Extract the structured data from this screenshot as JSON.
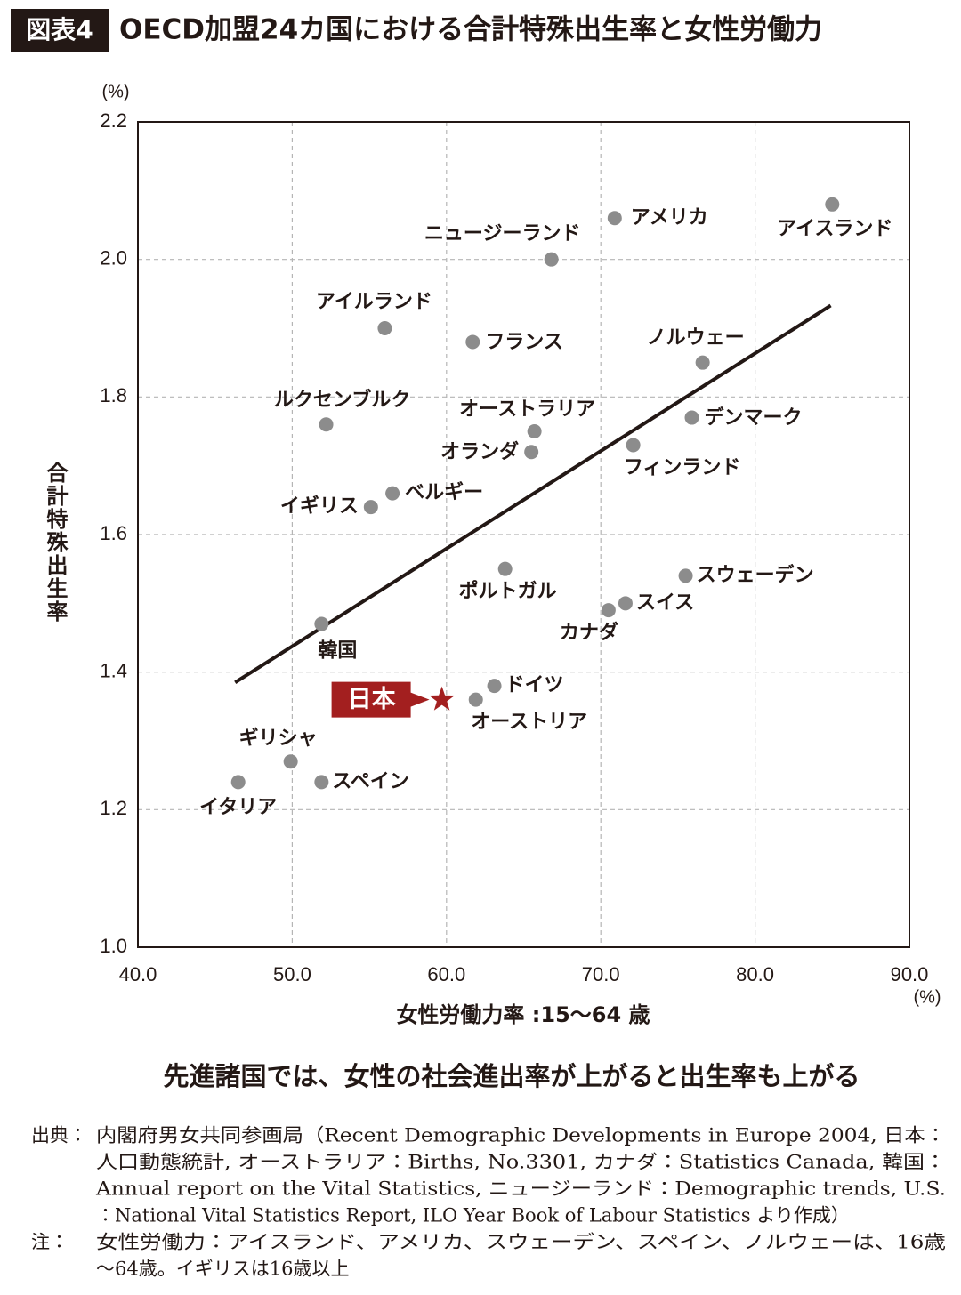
{
  "chart_data": {
    "type": "scatter",
    "badge": "図表4",
    "title": "OECD加盟24カ国における合計特殊出生率と女性労働力",
    "y_unit": "(%)",
    "x_unit": "(%)",
    "ylabel": "合計特殊出生率",
    "xlabel": "女性労働力率 :15〜64 歳",
    "subtitle": "先進諸国では、女性の社会進出率が上がると出生率も上がる",
    "color": "#8c8c8c",
    "highlight_color": "#a31f1f",
    "trend_color": "#231815",
    "xlim": [
      40,
      90
    ],
    "ylim": [
      1.0,
      2.2
    ],
    "xticks": [
      {
        "value": 40,
        "label": "40.0"
      },
      {
        "value": 50,
        "label": "50.0"
      },
      {
        "value": 60,
        "label": "60.0"
      },
      {
        "value": 70,
        "label": "70.0"
      },
      {
        "value": 80,
        "label": "80.0"
      },
      {
        "value": 90,
        "label": "90.0"
      }
    ],
    "yticks": [
      {
        "value": 1,
        "label": "1.0"
      },
      1.2,
      1.4,
      1.6,
      1.8,
      {
        "value": 2,
        "label": "2.0"
      },
      2.2
    ],
    "grid": true,
    "points": [
      {
        "label": "アイスランド",
        "x": 85.0,
        "y": 2.08
      },
      {
        "label": "アメリカ",
        "x": 70.9,
        "y": 2.06
      },
      {
        "label": "ニュージーランド",
        "x": 66.8,
        "y": 2.0
      },
      {
        "label": "アイルランド",
        "x": 56.0,
        "y": 1.9
      },
      {
        "label": "フランス",
        "x": 61.7,
        "y": 1.88
      },
      {
        "label": "ノルウェー",
        "x": 76.6,
        "y": 1.85
      },
      {
        "label": "ルクセンブルク",
        "x": 52.2,
        "y": 1.76
      },
      {
        "label": "デンマーク",
        "x": 75.9,
        "y": 1.77
      },
      {
        "label": "オーストラリア",
        "x": 65.7,
        "y": 1.75
      },
      {
        "label": "オランダ",
        "x": 65.5,
        "y": 1.72
      },
      {
        "label": "フィンランド",
        "x": 72.1,
        "y": 1.73
      },
      {
        "label": "ベルギー",
        "x": 56.5,
        "y": 1.66
      },
      {
        "label": "イギリス",
        "x": 55.1,
        "y": 1.64
      },
      {
        "label": "ポルトガル",
        "x": 63.8,
        "y": 1.55
      },
      {
        "label": "スウェーデン",
        "x": 75.5,
        "y": 1.54
      },
      {
        "label": "スイス",
        "x": 71.6,
        "y": 1.5
      },
      {
        "label": "カナダ",
        "x": 70.5,
        "y": 1.49
      },
      {
        "label": "韓国",
        "x": 51.9,
        "y": 1.47
      },
      {
        "label": "ドイツ",
        "x": 63.1,
        "y": 1.38
      },
      {
        "label": "日本",
        "x": 59.7,
        "y": 1.36,
        "marker": "star"
      },
      {
        "label": "オーストリア",
        "x": 61.9,
        "y": 1.36
      },
      {
        "label": "ギリシャ",
        "x": 49.9,
        "y": 1.27
      },
      {
        "label": "スペイン",
        "x": 51.9,
        "y": 1.24
      },
      {
        "label": "イタリア",
        "x": 46.5,
        "y": 1.24
      }
    ],
    "trendline": {
      "x": [
        46.3,
        84.9
      ],
      "y": [
        1.385,
        1.933
      ]
    }
  },
  "notes": [
    {
      "head": "出典：",
      "lines": [
        "内閣府男女共同参画局（Recent Demographic Developments in Europe 2004, 日本：",
        "人口動態統計, オーストラリア：Births, No.3301, カナダ：Statistics Canada, 韓国：",
        "Annual report on the Vital Statistics, ニュージーランド：Demographic trends, U.S.",
        "：National Vital Statistics Report, ILO Year Book of Labour Statistics より作成）"
      ]
    },
    {
      "head": "注：",
      "lines": [
        "女性労働力：アイスランド、アメリカ、スウェーデン、スペイン、ノルウェーは、16歳",
        "〜64歳。イギリスは16歳以上"
      ]
    }
  ]
}
